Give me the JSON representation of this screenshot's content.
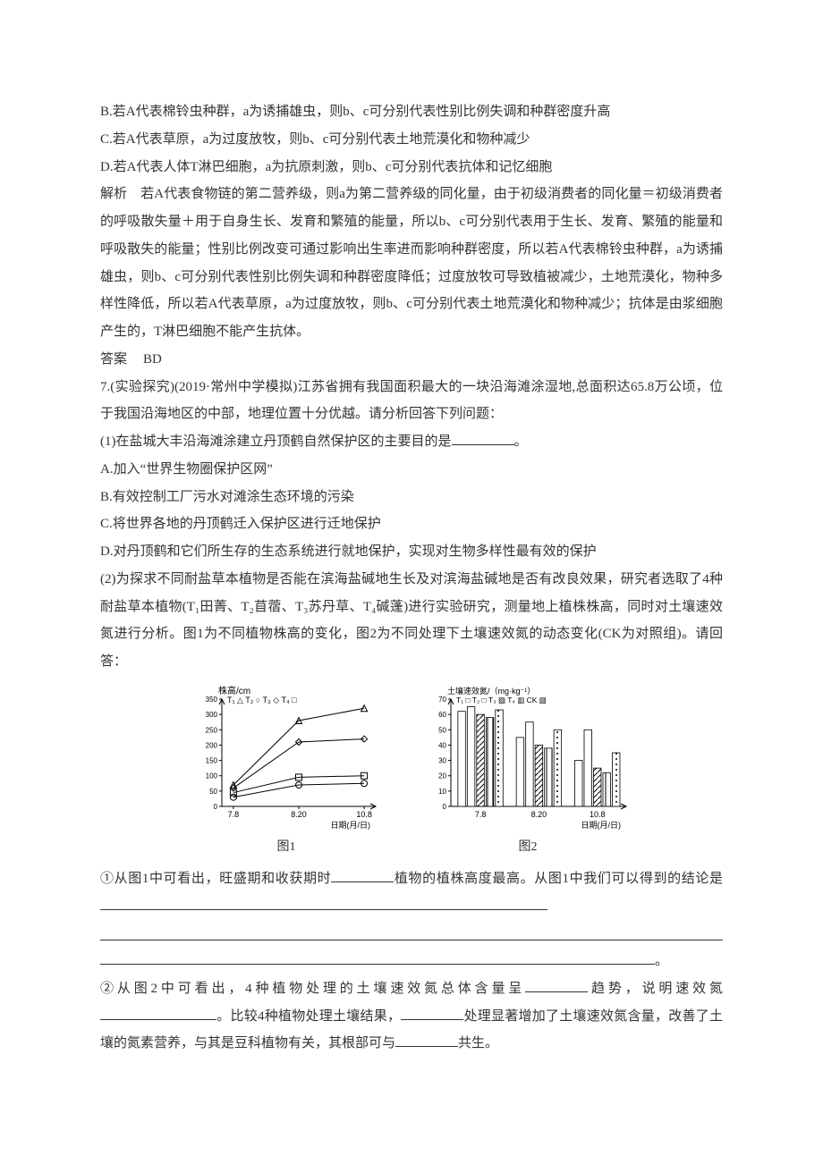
{
  "opts": {
    "B": "B.若A代表棉铃虫种群，a为诱捕雄虫，则b、c可分别代表性别比例失调和种群密度升高",
    "C": "C.若A代表草原，a为过度放牧，则b、c可分别代表土地荒漠化和物种减少",
    "D": "D.若A代表人体T淋巴细胞，a为抗原刺激，则b、c可分别代表抗体和记忆细胞"
  },
  "analysis": {
    "label": "解析",
    "text": "　若A代表食物链的第二营养级，则a为第二营养级的同化量，由于初级消费者的同化量＝初级消费者的呼吸散失量＋用于自身生长、发育和繁殖的能量，所以b、c可分别代表用于生长、发育、繁殖的能量和呼吸散失的能量；性别比例改变可通过影响出生率进而影响种群密度，所以若A代表棉铃虫种群，a为诱捕雄虫，则b、c可分别代表性别比例失调和种群密度降低；过度放牧可导致植被减少，土地荒漠化，物种多样性降低，所以若A代表草原，a为过度放牧，则b、c可分别代表土地荒漠化和物种减少；抗体是由浆细胞产生的，T淋巴细胞不能产生抗体。"
  },
  "answer": {
    "label": "答案",
    "value": "BD"
  },
  "q7": {
    "stem": "7.(实验探究)(2019·常州中学模拟)江苏省拥有我国面积最大的一块沿海滩涂湿地,总面积达65.8万公顷，位于我国沿海地区的中部，地理位置十分优越。请分析回答下列问题：",
    "p1": "(1)在盐城大丰沿海滩涂建立丹顶鹤自然保护区的主要目的是",
    "p1_tail": "。",
    "A": "A.加入“世界生物圈保护区网”",
    "B": "B.有效控制工厂污水对滩涂生态环境的污染",
    "C": "C.将世界各地的丹顶鹤迁入保护区进行迁地保护",
    "D": "D.对丹顶鹤和它们所生存的生态系统进行就地保护，实现对生物多样性最有效的保护",
    "p2": "(2)为探求不同耐盐草本植物是否能在滨海盐碱地生长及对滨海盐碱地是否有改良效果，研究者选取了4种耐盐草本植物(T₁田菁、T₂苜蓿、T₃苏丹草、T₄碱蓬)进行实验研究，测量地上植株株高，同时对土壤速效氮进行分析。图1为不同植物株高的变化，图2为不同处理下土壤速效氮的动态变化(CK为对照组)。请回答：",
    "sub1a": "①从图1中可看出，旺盛期和收获期时",
    "sub1b": "植物的植株高度最高。从图1中我们可以得到的结论是",
    "sub1_tail": "。",
    "sub2a": "②从图2中可看出，4种植物处理的土壤速效氮总体含量呈",
    "sub2b": "趋势，说明速效氮",
    "sub2c": "。比较4种植物处理土壤结果，",
    "sub2d": "处理显著增加了土壤速效氮含量，改善了土壤的氮素营养，与其是豆科植物有关，其根部可与",
    "sub2e": "共生。"
  },
  "fig1": {
    "caption": "图1",
    "ylabel": "株高/cm",
    "xlabel": "日期(月/日)",
    "legend": "T₁ △  T₂ ○  T₃ ◇  T₄ □",
    "xticks": [
      "7.8",
      "8.20",
      "10.8"
    ],
    "yticks": [
      0,
      50,
      100,
      150,
      200,
      250,
      300,
      350
    ],
    "ylim": [
      0,
      350
    ],
    "colors": {
      "axis": "#000000",
      "bg": "#ffffff"
    },
    "series": {
      "T1": {
        "marker": "triangle",
        "pts": [
          [
            0,
            70
          ],
          [
            1,
            280
          ],
          [
            2,
            320
          ]
        ]
      },
      "T2": {
        "marker": "circle",
        "pts": [
          [
            0,
            30
          ],
          [
            1,
            70
          ],
          [
            2,
            75
          ]
        ]
      },
      "T3": {
        "marker": "diamond",
        "pts": [
          [
            0,
            60
          ],
          [
            1,
            210
          ],
          [
            2,
            220
          ]
        ]
      },
      "T4": {
        "marker": "square",
        "pts": [
          [
            0,
            45
          ],
          [
            1,
            95
          ],
          [
            2,
            100
          ]
        ]
      }
    }
  },
  "fig2": {
    "caption": "图2",
    "ylabel": "土壤速效氮/（mg·kg⁻¹）",
    "xlabel": "日期(月/日)",
    "legend": "T₁ □  T₂ □  T₃ ▨  T₄ ▥  CK ▧",
    "xticks": [
      "7.8",
      "8.20",
      "10.8"
    ],
    "yticks": [
      0,
      10,
      20,
      30,
      40,
      50,
      60,
      70
    ],
    "ylim": [
      0,
      70
    ],
    "colors": {
      "axis": "#000000",
      "bg": "#ffffff",
      "T1": "#ffffff",
      "T2": "#ffffff",
      "T3": "hatch-diag",
      "T4": "hatch-vert",
      "CK": "hatch-dots"
    },
    "groups": {
      "7.8": {
        "T1": 62,
        "T2": 65,
        "T3": 60,
        "T4": 58,
        "CK": 63
      },
      "8.20": {
        "T1": 45,
        "T2": 55,
        "T3": 40,
        "T4": 38,
        "CK": 50
      },
      "10.8": {
        "T1": 30,
        "T2": 50,
        "T3": 25,
        "T4": 22,
        "CK": 35
      }
    }
  }
}
